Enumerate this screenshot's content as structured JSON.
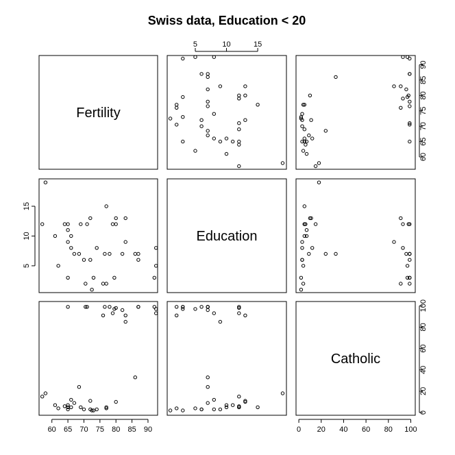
{
  "chart_data": {
    "type": "scatter-matrix",
    "title": "Swiss data, Education < 20",
    "variables": [
      "Fertility",
      "Education",
      "Catholic"
    ],
    "ranges": {
      "Fertility": [
        56,
        93
      ],
      "Education": [
        0.5,
        19.6
      ],
      "Catholic": [
        -2.5,
        104
      ]
    },
    "ticks": {
      "Fertility": [
        60,
        65,
        70,
        75,
        80,
        85,
        90
      ],
      "Education": [
        5,
        10,
        15
      ],
      "Catholic": [
        0,
        20,
        40,
        60,
        80,
        100
      ]
    },
    "tick_labels": {
      "Fertility": [
        "60",
        "65",
        "70",
        "75",
        "80",
        "85",
        "90"
      ],
      "Education": [
        "5",
        "10",
        "15"
      ],
      "Catholic": [
        "0",
        "20",
        "40",
        "60",
        "80",
        "100"
      ]
    },
    "observations": [
      {
        "Fertility": 92.5,
        "Education": 5,
        "Catholic": 97
      },
      {
        "Fertility": 86.0,
        "Education": 7,
        "Catholic": 33
      },
      {
        "Fertility": 92.5,
        "Education": 8,
        "Catholic": 93
      },
      {
        "Fertility": 87.0,
        "Education": 6,
        "Catholic": 99
      },
      {
        "Fertility": 58.0,
        "Education": 19,
        "Catholic": 18
      },
      {
        "Fertility": 80.0,
        "Education": 13,
        "Catholic": 10
      },
      {
        "Fertility": 83.0,
        "Education": 13,
        "Catholic": 91
      },
      {
        "Fertility": 64.0,
        "Education": 12,
        "Catholic": 6
      },
      {
        "Fertility": 77.0,
        "Education": 15,
        "Catholic": 5
      },
      {
        "Fertility": 76.0,
        "Education": 2,
        "Catholic": 91
      },
      {
        "Fertility": 83.0,
        "Education": 9,
        "Catholic": 85
      },
      {
        "Fertility": 68.5,
        "Education": 7,
        "Catholic": 24
      },
      {
        "Fertility": 65.0,
        "Education": 12,
        "Catholic": 5
      },
      {
        "Fertility": 72.0,
        "Education": 6,
        "Catholic": 3
      },
      {
        "Fertility": 79.0,
        "Education": 12,
        "Catholic": 93
      },
      {
        "Fertility": 74.0,
        "Education": 8,
        "Catholic": 3
      },
      {
        "Fertility": 72.5,
        "Education": 1,
        "Catholic": 2
      },
      {
        "Fertility": 79.5,
        "Education": 3,
        "Catholic": 97
      },
      {
        "Fertility": 76.5,
        "Education": 7,
        "Catholic": 99
      },
      {
        "Fertility": 70.5,
        "Education": 2,
        "Catholic": 99
      },
      {
        "Fertility": 73.0,
        "Education": 3,
        "Catholic": 2
      },
      {
        "Fertility": 72.0,
        "Education": 13,
        "Catholic": 11
      },
      {
        "Fertility": 65.0,
        "Education": 3,
        "Catholic": 99
      },
      {
        "Fertility": 69.0,
        "Education": 12,
        "Catholic": 5
      },
      {
        "Fertility": 61.0,
        "Education": 10,
        "Catholic": 7
      },
      {
        "Fertility": 62.0,
        "Education": 5,
        "Catholic": 4
      },
      {
        "Fertility": 66.0,
        "Education": 8,
        "Catholic": 12
      },
      {
        "Fertility": 71.0,
        "Education": 12,
        "Catholic": 99
      },
      {
        "Fertility": 70.0,
        "Education": 6,
        "Catholic": 3
      },
      {
        "Fertility": 67.0,
        "Education": 7,
        "Catholic": 9
      },
      {
        "Fertility": 65.0,
        "Education": 9,
        "Catholic": 3
      },
      {
        "Fertility": 57.0,
        "Education": 12,
        "Catholic": 15
      },
      {
        "Fertility": 82.0,
        "Education": 7,
        "Catholic": 96
      },
      {
        "Fertility": 78.0,
        "Education": 7,
        "Catholic": 99
      },
      {
        "Fertility": 65.0,
        "Education": 11,
        "Catholic": 7
      },
      {
        "Fertility": 92.0,
        "Education": 3,
        "Catholic": 99
      },
      {
        "Fertility": 87.0,
        "Education": 7,
        "Catholic": 99
      },
      {
        "Fertility": 66.0,
        "Education": 10,
        "Catholic": 5
      },
      {
        "Fertility": 77.0,
        "Education": 2,
        "Catholic": 4
      },
      {
        "Fertility": 80.0,
        "Education": 12,
        "Catholic": 98
      }
    ]
  }
}
